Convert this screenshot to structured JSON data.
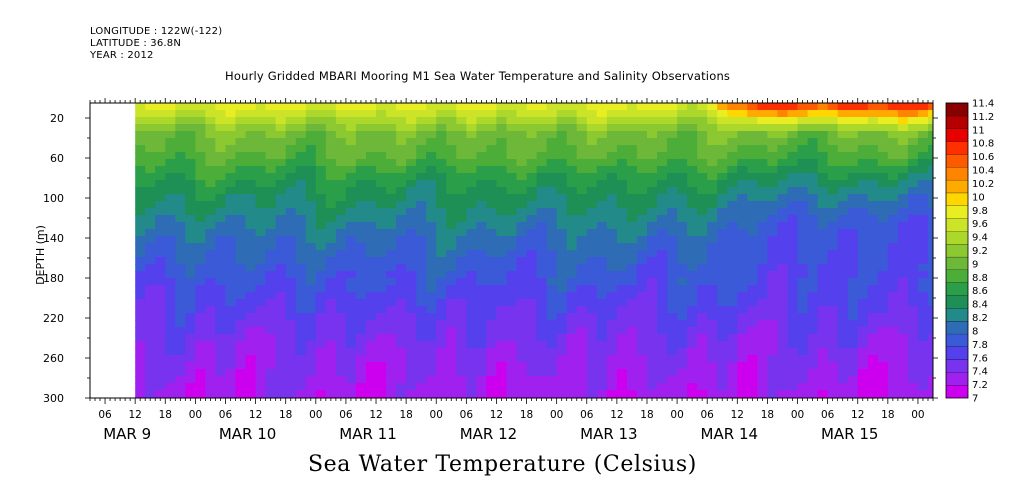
{
  "header": {
    "longitude": "LONGITUDE : 122W(-122)",
    "latitude": "LATITUDE : 36.8N",
    "year": "YEAR : 2012"
  },
  "chart_data": {
    "type": "heatmap",
    "title": "Hourly Gridded MBARI Mooring M1 Sea Water Temperature and Salinity Observations",
    "bottom_title": "Sea Water Temperature (Celsius)",
    "ylabel": "DEPTH (m)",
    "y_ticks": [
      20,
      60,
      100,
      140,
      180,
      220,
      260,
      300
    ],
    "ylim": [
      300,
      5
    ],
    "x_hour_ticks": [
      "06",
      "12",
      "18",
      "00",
      "06",
      "12",
      "18",
      "00",
      "06",
      "12",
      "18",
      "00",
      "06",
      "12",
      "18",
      "00",
      "06",
      "12",
      "18",
      "00",
      "06",
      "12",
      "18",
      "00",
      "06",
      "12",
      "18",
      "00"
    ],
    "x_day_labels": [
      "MAR  9",
      "MAR 10",
      "MAR 11",
      "MAR 12",
      "MAR 13",
      "MAR 14",
      "MAR 15"
    ],
    "x_range": [
      "2012-03-09 03:00",
      "2012-03-16 03:00"
    ],
    "data_start": "2012-03-09 12:00",
    "colorbar_levels": [
      "7",
      "7.2",
      "7.4",
      "7.6",
      "7.8",
      "8",
      "8.2",
      "8.4",
      "8.6",
      "8.8",
      "9",
      "9.2",
      "9.4",
      "9.6",
      "9.8",
      "10",
      "10.2",
      "10.4",
      "10.6",
      "10.8",
      "11",
      "11.2",
      "11.4"
    ],
    "colors": [
      "#cc00ee",
      "#a020f0",
      "#7733ee",
      "#5540ee",
      "#3a5ad8",
      "#2e6cb6",
      "#238a8a",
      "#1e8f55",
      "#2a9e48",
      "#4cad38",
      "#6db838",
      "#8cc830",
      "#acd82c",
      "#cce427",
      "#e8ee22",
      "#ffd700",
      "#ffaa00",
      "#ff8400",
      "#ff5a00",
      "#ff3000",
      "#e80000",
      "#b50000",
      "#880000"
    ],
    "depth_profile": [
      {
        "depth": 5,
        "value": 9.9
      },
      {
        "depth": 20,
        "value": 9.55
      },
      {
        "depth": 35,
        "value": 9.15
      },
      {
        "depth": 60,
        "value": 8.95
      },
      {
        "depth": 80,
        "value": 8.65
      },
      {
        "depth": 100,
        "value": 8.45
      },
      {
        "depth": 140,
        "value": 8.1
      },
      {
        "depth": 180,
        "value": 7.85
      },
      {
        "depth": 220,
        "value": 7.6
      },
      {
        "depth": 260,
        "value": 7.4
      },
      {
        "depth": 300,
        "value": 7.25
      }
    ],
    "surface_warming": {
      "start": "2012-03-14 06:00",
      "end": "2012-03-16 03:00",
      "max_value": 11.1
    }
  }
}
